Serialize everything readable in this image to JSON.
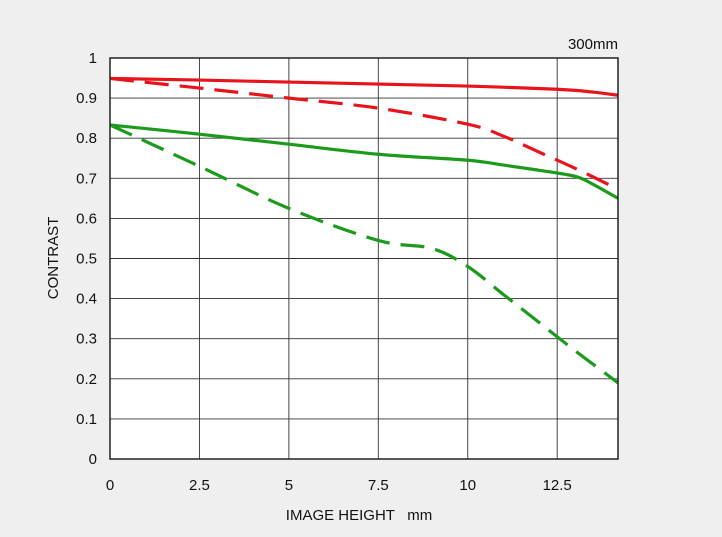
{
  "chart_data": {
    "type": "line",
    "title": "300mm",
    "xlabel": "IMAGE HEIGHT   mm",
    "ylabel": "CONTRAST",
    "xlim": [
      0,
      14.2
    ],
    "ylim": [
      0,
      1
    ],
    "grid": true,
    "x_ticks": [
      0,
      2.5,
      5,
      7.5,
      10,
      12.5
    ],
    "x_tick_labels": [
      "0",
      "2.5",
      "5",
      "7.5",
      "10",
      "12.5"
    ],
    "y_ticks": [
      0,
      0.1,
      0.2,
      0.3,
      0.4,
      0.5,
      0.6,
      0.7,
      0.8,
      0.9,
      1
    ],
    "y_tick_labels": [
      "0",
      "0.1",
      "0.2",
      "0.3",
      "0.4",
      "0.5",
      "0.6",
      "0.7",
      "0.8",
      "0.9",
      "1"
    ],
    "series": [
      {
        "color": "#e8141b",
        "style": "solid",
        "x": [
          0,
          2.5,
          5,
          7.5,
          10,
          12.5,
          13.5,
          14.2
        ],
        "y": [
          0.949,
          0.945,
          0.94,
          0.935,
          0.93,
          0.922,
          0.915,
          0.907
        ]
      },
      {
        "color": "#e8141b",
        "style": "dashed",
        "x": [
          0,
          2.5,
          5,
          7.5,
          10,
          11,
          12,
          13,
          14.2
        ],
        "y": [
          0.949,
          0.925,
          0.9,
          0.875,
          0.835,
          0.805,
          0.765,
          0.725,
          0.673
        ]
      },
      {
        "color": "#1c9a1c",
        "style": "solid",
        "x": [
          0,
          2.5,
          5,
          7.5,
          10,
          11,
          12,
          13,
          13.5,
          14.2
        ],
        "y": [
          0.833,
          0.81,
          0.785,
          0.76,
          0.745,
          0.733,
          0.72,
          0.705,
          0.685,
          0.65
        ]
      },
      {
        "color": "#1c9a1c",
        "style": "dashed",
        "x": [
          0,
          2.5,
          5,
          7.5,
          9,
          10,
          11,
          12,
          13,
          14.2
        ],
        "y": [
          0.833,
          0.73,
          0.625,
          0.545,
          0.525,
          0.48,
          0.41,
          0.34,
          0.27,
          0.19
        ]
      }
    ]
  }
}
